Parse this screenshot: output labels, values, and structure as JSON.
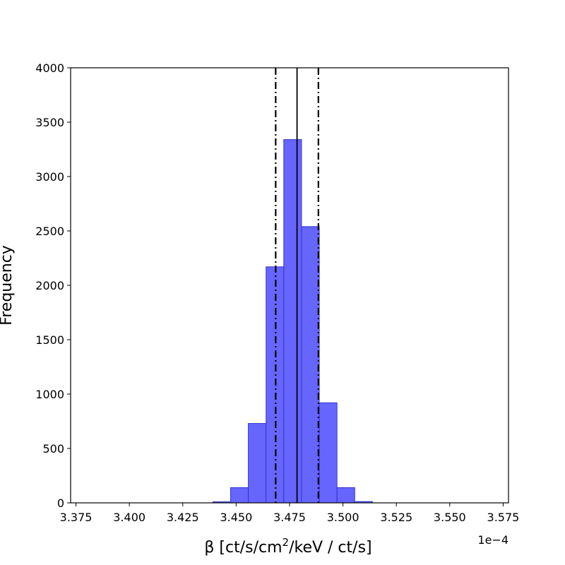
{
  "chart_data": {
    "type": "bar",
    "xlabel_main": "β [ct/s/cm",
    "xlabel_sup": "2",
    "xlabel_rest": "/keV / ct/s]",
    "ylabel": "Frequency",
    "offset_text": "1e−4",
    "xlim": [
      3.3725,
      3.5775
    ],
    "ylim": [
      0,
      4000
    ],
    "x_ticks": [
      3.375,
      3.4,
      3.425,
      3.45,
      3.475,
      3.5,
      3.525,
      3.55,
      3.575
    ],
    "x_tick_labels": [
      "3.375",
      "3.400",
      "3.425",
      "3.450",
      "3.475",
      "3.500",
      "3.525",
      "3.550",
      "3.575"
    ],
    "y_ticks": [
      0,
      500,
      1000,
      1500,
      2000,
      2500,
      3000,
      3500,
      4000
    ],
    "y_tick_labels": [
      "0",
      "500",
      "1000",
      "1500",
      "2000",
      "2500",
      "3000",
      "3500",
      "4000"
    ],
    "bin_width": 0.0083,
    "bins": [
      {
        "x": 3.4391,
        "count": 10
      },
      {
        "x": 3.4474,
        "count": 140
      },
      {
        "x": 3.4557,
        "count": 730
      },
      {
        "x": 3.464,
        "count": 2170
      },
      {
        "x": 3.4723,
        "count": 3340
      },
      {
        "x": 3.4806,
        "count": 2540
      },
      {
        "x": 3.4889,
        "count": 920
      },
      {
        "x": 3.4972,
        "count": 140
      },
      {
        "x": 3.5055,
        "count": 12
      }
    ],
    "bar_color": "#6666ff",
    "bar_edge_color": "#3333cc",
    "vlines": [
      {
        "x": 3.4685,
        "style": "dashdot"
      },
      {
        "x": 3.4785,
        "style": "solid"
      },
      {
        "x": 3.4885,
        "style": "dashdot"
      }
    ],
    "grid": false,
    "legend": "none"
  }
}
